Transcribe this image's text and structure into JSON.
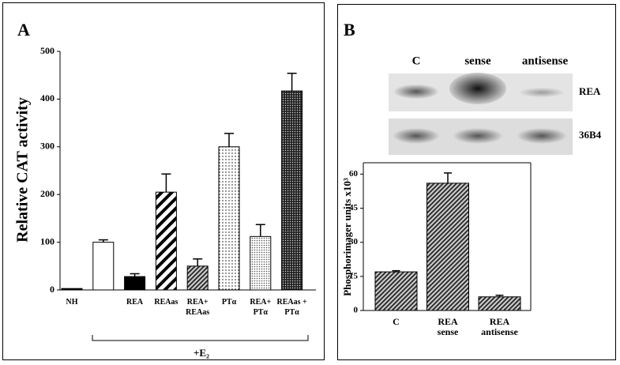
{
  "chart_data": [
    {
      "type": "bar",
      "panel_label": "A",
      "ylabel": "Relative CAT activity",
      "categories": [
        "NH",
        null,
        "REA",
        "REAas",
        "REA+ REAas",
        "PTα",
        "REA+ PTα",
        "REAas + PTα"
      ],
      "values": [
        3,
        100,
        28,
        205,
        50,
        300,
        112,
        417
      ],
      "errors": [
        0,
        5,
        6,
        38,
        15,
        28,
        25,
        37
      ],
      "patterns": [
        "black",
        "white",
        "black",
        "wide-stripes",
        "dense-stripes",
        "sparse-dots",
        "light-dots",
        "dense-dots"
      ],
      "ylim": [
        0,
        500
      ],
      "yticks": [
        0,
        100,
        200,
        300,
        400,
        500
      ],
      "annotation": "+E₂"
    },
    {
      "type": "bar",
      "panel_label": "B",
      "ylabel": "Phosphorimager units x10³",
      "categories": [
        "C",
        "REA sense",
        "REA antisense"
      ],
      "values": [
        17,
        56,
        6
      ],
      "errors": [
        0.5,
        4.5,
        0.7
      ],
      "patterns": [
        "dense-stripes",
        "dense-stripes",
        "dense-stripes"
      ],
      "ylim": [
        0,
        65
      ],
      "yticks": [
        0,
        15,
        30,
        45,
        60
      ]
    }
  ],
  "blot": {
    "lanes": [
      "C",
      "sense",
      "antisense"
    ],
    "bands": [
      "REA",
      "36B4"
    ]
  }
}
